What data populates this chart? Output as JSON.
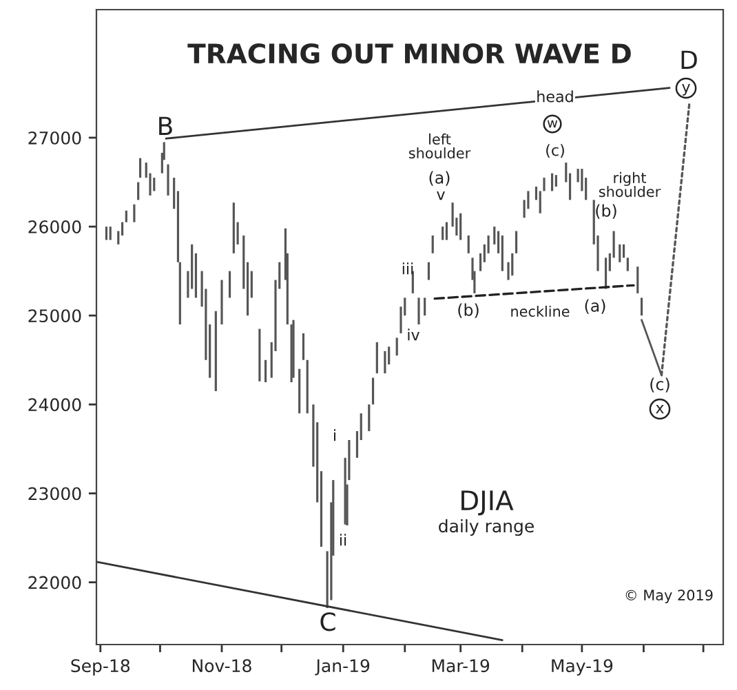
{
  "chart_data": {
    "type": "bar",
    "title": "TRACING OUT MINOR WAVE D",
    "xlim": [
      "2018-08-30",
      "2019-07-11"
    ],
    "xticks": [
      {
        "value": "2018-09-01",
        "label": "Sep-18"
      },
      {
        "value": "2018-10-01",
        "label": null
      },
      {
        "value": "2018-11-01",
        "label": "Nov-18"
      },
      {
        "value": "2018-12-01",
        "label": null
      },
      {
        "value": "2019-01-01",
        "label": "Jan-19"
      },
      {
        "value": "2019-02-01",
        "label": null
      },
      {
        "value": "2019-03-01",
        "label": "Mar-19"
      },
      {
        "value": "2019-04-01",
        "label": null
      },
      {
        "value": "2019-05-01",
        "label": "May-19"
      },
      {
        "value": "2019-06-01",
        "label": null
      },
      {
        "value": "2019-07-01",
        "label": null
      }
    ],
    "ylim": [
      21300,
      28440
    ],
    "yticks": [
      22000,
      23000,
      24000,
      25000,
      26000,
      27000
    ],
    "series": [
      {
        "color": "#555555",
        "x": [
          "2018-09-04",
          "2018-09-06",
          "2018-09-10",
          "2018-09-12",
          "2018-09-14",
          "2018-09-18",
          "2018-09-20",
          "2018-09-21",
          "2018-09-24",
          "2018-09-26",
          "2018-09-28",
          "2018-10-02",
          "2018-10-03",
          "2018-10-05",
          "2018-10-08",
          "2018-10-10",
          "2018-10-11",
          "2018-10-15",
          "2018-10-17",
          "2018-10-19",
          "2018-10-22",
          "2018-10-24",
          "2018-10-26",
          "2018-10-29",
          "2018-11-01",
          "2018-11-05",
          "2018-11-07",
          "2018-11-09",
          "2018-11-12",
          "2018-11-14",
          "2018-11-16",
          "2018-11-20",
          "2018-11-23",
          "2018-11-26",
          "2018-11-28",
          "2018-11-30",
          "2018-12-03",
          "2018-12-04",
          "2018-12-06",
          "2018-12-07",
          "2018-12-10",
          "2018-12-12",
          "2018-12-14",
          "2018-12-17",
          "2018-12-19",
          "2018-12-21",
          "2018-12-24",
          "2018-12-26",
          "2018-12-27",
          "2019-01-02",
          "2019-01-03",
          "2019-01-04",
          "2019-01-08",
          "2019-01-10",
          "2019-01-14",
          "2019-01-16",
          "2019-01-18",
          "2019-01-22",
          "2019-01-24",
          "2019-01-28",
          "2019-01-30",
          "2019-02-01",
          "2019-02-05",
          "2019-02-08",
          "2019-02-11",
          "2019-02-13",
          "2019-02-15",
          "2019-02-20",
          "2019-02-22",
          "2019-02-25",
          "2019-02-27",
          "2019-03-01",
          "2019-03-05",
          "2019-03-07",
          "2019-03-08",
          "2019-03-11",
          "2019-03-13",
          "2019-03-15",
          "2019-03-18",
          "2019-03-20",
          "2019-03-22",
          "2019-03-25",
          "2019-03-27",
          "2019-03-29",
          "2019-04-02",
          "2019-04-04",
          "2019-04-08",
          "2019-04-10",
          "2019-04-12",
          "2019-04-16",
          "2019-04-18",
          "2019-04-23",
          "2019-04-25",
          "2019-04-29",
          "2019-05-01",
          "2019-05-03",
          "2019-05-07",
          "2019-05-09",
          "2019-05-13",
          "2019-05-15",
          "2019-05-17",
          "2019-05-20",
          "2019-05-22",
          "2019-05-24",
          "2019-05-29",
          "2019-05-31"
        ],
        "base": [
          25850,
          25850,
          25800,
          25900,
          26050,
          26050,
          26300,
          26550,
          26550,
          26350,
          26400,
          26600,
          26750,
          26350,
          26200,
          25600,
          24900,
          25200,
          25300,
          25200,
          25100,
          24500,
          24300,
          24150,
          24900,
          25200,
          25700,
          25800,
          25300,
          25000,
          25200,
          24260,
          24250,
          24300,
          24600,
          25300,
          25400,
          24900,
          24250,
          24300,
          23900,
          24500,
          23900,
          23300,
          22900,
          22400,
          21710,
          21800,
          22300,
          22650,
          22640,
          23150,
          23400,
          23600,
          23700,
          24000,
          24350,
          24350,
          24450,
          24550,
          24800,
          25000,
          25250,
          24900,
          25000,
          25400,
          25700,
          25850,
          25850,
          26000,
          25900,
          25850,
          25700,
          25400,
          25250,
          25500,
          25600,
          25700,
          25800,
          25700,
          25500,
          25400,
          25450,
          25700,
          26100,
          26200,
          26300,
          26150,
          26400,
          26400,
          26450,
          26500,
          26300,
          26500,
          26400,
          26300,
          25800,
          25500,
          25300,
          25500,
          25650,
          25600,
          25650,
          25500,
          25250,
          25000
        ],
        "values": [
          150,
          150,
          150,
          150,
          130,
          200,
          200,
          220,
          170,
          250,
          150,
          230,
          200,
          350,
          350,
          800,
          700,
          300,
          500,
          500,
          400,
          800,
          600,
          900,
          500,
          300,
          570,
          250,
          600,
          600,
          300,
          590,
          250,
          400,
          800,
          300,
          580,
          800,
          650,
          650,
          500,
          300,
          600,
          700,
          900,
          850,
          640,
          1100,
          850,
          750,
          460,
          450,
          300,
          300,
          300,
          300,
          350,
          250,
          200,
          200,
          300,
          200,
          250,
          300,
          200,
          200,
          200,
          150,
          200,
          270,
          200,
          300,
          200,
          250,
          250,
          200,
          200,
          200,
          200,
          250,
          400,
          200,
          250,
          250,
          200,
          200,
          150,
          250,
          150,
          200,
          130,
          220,
          300,
          150,
          250,
          250,
          500,
          400,
          350,
          200,
          300,
          200,
          150,
          150,
          300,
          200
        ]
      },
      {
        "type": "line",
        "color": "#333333",
        "line_style": "solid",
        "x": [
          "2018-10-04",
          "2019-06-14"
        ],
        "values": [
          26990,
          27560
        ]
      },
      {
        "type": "line",
        "color": "#333333",
        "line_style": "solid",
        "x": [
          "2018-08-30",
          "2019-03-22"
        ],
        "values": [
          22230,
          21350
        ]
      },
      {
        "type": "line",
        "color": "#222222",
        "line_style": "dashed",
        "x": [
          "2019-02-16",
          "2019-05-27"
        ],
        "values": [
          25190,
          25340
        ]
      },
      {
        "type": "line",
        "color": "#555555",
        "line_style": "solid",
        "x": [
          "2019-05-31",
          "2019-06-10"
        ],
        "values": [
          24950,
          24330
        ]
      },
      {
        "type": "line",
        "color": "#555555",
        "line_style": "dotted",
        "x": [
          "2019-06-10",
          "2019-06-24"
        ],
        "values": [
          24330,
          27390
        ]
      }
    ],
    "marker": "none",
    "annotations": [
      "B",
      "C",
      "D",
      "y",
      "head",
      "w",
      "(c)",
      "left\nshoulder",
      "(a)",
      "v",
      "iii",
      "iv",
      "i",
      "ii",
      "(b)",
      "neckline",
      "right\nshoulder",
      "(b)",
      "(a)",
      "(c)",
      "x",
      "DJIA",
      "daily range",
      "© May 2019"
    ]
  }
}
